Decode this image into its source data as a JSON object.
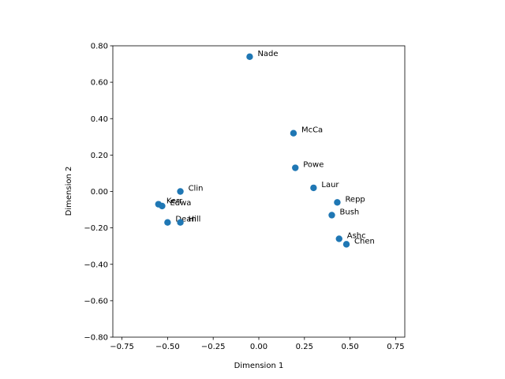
{
  "chart_data": {
    "type": "scatter",
    "title": "",
    "xlabel": "Dimension 1",
    "ylabel": "Dimension 2",
    "xlim": [
      -0.8,
      0.8
    ],
    "ylim": [
      -0.8,
      0.8
    ],
    "xticks": [
      -0.75,
      -0.5,
      -0.25,
      0.0,
      0.25,
      0.5,
      0.75
    ],
    "yticks": [
      -0.8,
      -0.6,
      -0.4,
      -0.2,
      0.0,
      0.2,
      0.4,
      0.6,
      0.8
    ],
    "grid": false,
    "marker_color": "#1f77b4",
    "points": [
      {
        "label": "Nade",
        "x": -0.05,
        "y": 0.74
      },
      {
        "label": "McCa",
        "x": 0.19,
        "y": 0.32
      },
      {
        "label": "Powe",
        "x": 0.2,
        "y": 0.13
      },
      {
        "label": "Laur",
        "x": 0.3,
        "y": 0.02
      },
      {
        "label": "Repp",
        "x": 0.43,
        "y": -0.06
      },
      {
        "label": "Bush",
        "x": 0.4,
        "y": -0.13
      },
      {
        "label": "Ashc",
        "x": 0.44,
        "y": -0.26
      },
      {
        "label": "Chen",
        "x": 0.48,
        "y": -0.29
      },
      {
        "label": "Clin",
        "x": -0.43,
        "y": 0.0
      },
      {
        "label": "Kerr",
        "x": -0.55,
        "y": -0.07
      },
      {
        "label": "Edwa",
        "x": -0.53,
        "y": -0.08
      },
      {
        "label": "Dean",
        "x": -0.5,
        "y": -0.17
      },
      {
        "label": "Hill",
        "x": -0.43,
        "y": -0.17
      }
    ]
  }
}
